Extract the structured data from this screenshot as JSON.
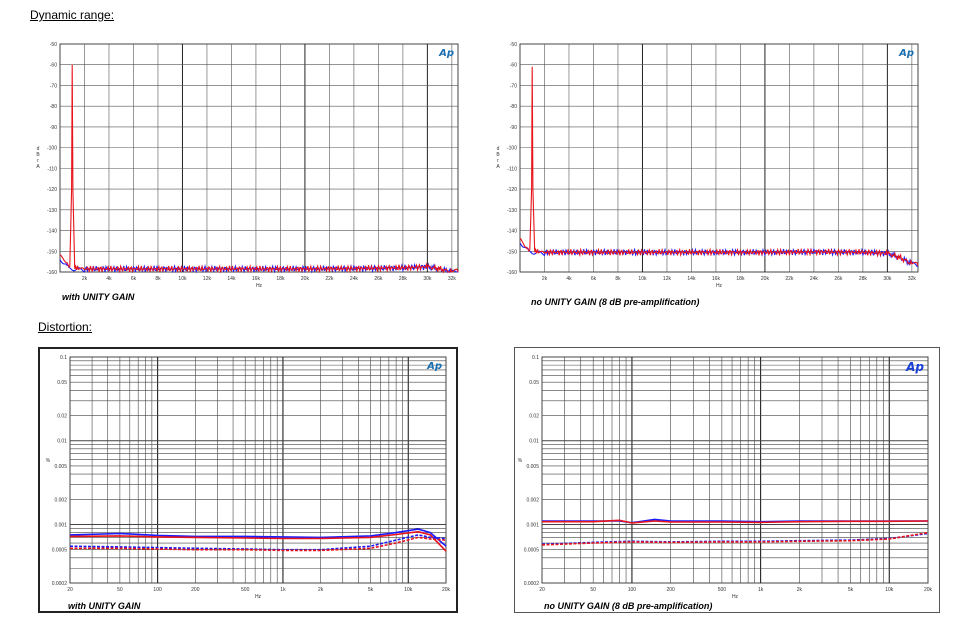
{
  "headings": {
    "dynamic_range": "Dynamic range:",
    "distortion": "Distortion:"
  },
  "chart_data": [
    {
      "id": "dyn_unity",
      "type": "line",
      "logo": "Ap",
      "caption": "with UNITY GAIN",
      "ylabel": "d B r A",
      "xlabel": "Hz",
      "xscale": "linear",
      "xlim": [
        0,
        32500
      ],
      "ylim": [
        -160,
        -50
      ],
      "yticks": [
        -50,
        -60,
        -70,
        -80,
        -90,
        -100,
        -110,
        -120,
        -130,
        -140,
        -150,
        -160
      ],
      "ytick_labels": [
        "-50",
        "-60",
        "-70",
        "-80",
        "-90",
        "-100",
        "-110",
        "-120",
        "-130",
        "-140",
        "-150",
        "-160"
      ],
      "xticks": [
        2000,
        4000,
        6000,
        8000,
        10000,
        12000,
        14000,
        16000,
        18000,
        20000,
        22000,
        24000,
        26000,
        28000,
        30000,
        32000
      ],
      "xtick_labels": [
        "2k",
        "4k",
        "6k",
        "8k",
        "10k",
        "12k",
        "14k",
        "16k",
        "18k",
        "20k",
        "22k",
        "24k",
        "26k",
        "28k",
        "30k",
        "32k"
      ],
      "grid": true,
      "series": [
        {
          "color": "#1a1aff",
          "x": [
            0,
            500,
            800,
            1000,
            1500,
            2000,
            4000,
            8000,
            12000,
            16000,
            20000,
            24000,
            28000,
            30000,
            31000,
            32000,
            32500
          ],
          "y": [
            -154,
            -156,
            -158,
            -158,
            -158,
            -158.5,
            -158.5,
            -158.5,
            -158.5,
            -158.5,
            -158.5,
            -158.3,
            -158,
            -157.5,
            -158.5,
            -160,
            -160
          ]
        },
        {
          "color": "#e8141c",
          "x": [
            0,
            500,
            800,
            950,
            1000,
            1050,
            1200,
            1500,
            2000,
            4000,
            8000,
            12000,
            16000,
            20000,
            24000,
            28000,
            30000,
            31000,
            32000,
            32500
          ],
          "y": [
            -153,
            -155,
            -158,
            -120,
            -60,
            -120,
            -158,
            -158,
            -158.5,
            -158.5,
            -158.5,
            -158.5,
            -158.5,
            -158.5,
            -158.3,
            -158,
            -157.5,
            -158.5,
            -160,
            -160
          ]
        }
      ]
    },
    {
      "id": "dyn_nounity",
      "type": "line",
      "logo": "Ap",
      "caption": "no UNITY GAIN (8 dB pre-amplification)",
      "ylabel": "d B r A",
      "xlabel": "Hz",
      "xscale": "linear",
      "xlim": [
        0,
        32500
      ],
      "ylim": [
        -160,
        -50
      ],
      "yticks": [
        -50,
        -60,
        -70,
        -80,
        -90,
        -100,
        -110,
        -120,
        -130,
        -140,
        -150,
        -160
      ],
      "ytick_labels": [
        "-50",
        "-60",
        "-70",
        "-80",
        "-90",
        "-100",
        "-110",
        "-120",
        "-130",
        "-140",
        "-150",
        "-160"
      ],
      "xticks": [
        2000,
        4000,
        6000,
        8000,
        10000,
        12000,
        14000,
        16000,
        18000,
        20000,
        22000,
        24000,
        26000,
        28000,
        30000,
        32000
      ],
      "xtick_labels": [
        "2k",
        "4k",
        "6k",
        "8k",
        "10k",
        "12k",
        "14k",
        "16k",
        "18k",
        "20k",
        "22k",
        "24k",
        "26k",
        "28k",
        "30k",
        "32k"
      ],
      "grid": true,
      "series": [
        {
          "color": "#1a1aff",
          "x": [
            0,
            500,
            800,
            1000,
            1500,
            2000,
            4000,
            8000,
            12000,
            16000,
            20000,
            24000,
            28000,
            30000,
            31000,
            32000,
            32500
          ],
          "y": [
            -146,
            -148,
            -150,
            -150,
            -150,
            -150.5,
            -150.5,
            -150.5,
            -150.5,
            -150.5,
            -150.5,
            -150.3,
            -150.5,
            -151,
            -153,
            -156,
            -157
          ]
        },
        {
          "color": "#e8141c",
          "x": [
            0,
            500,
            800,
            950,
            1000,
            1050,
            1200,
            1500,
            2000,
            4000,
            8000,
            12000,
            16000,
            20000,
            24000,
            28000,
            30000,
            31000,
            32000,
            32500
          ],
          "y": [
            -145,
            -148,
            -150,
            -120,
            -61,
            -120,
            -150,
            -150,
            -150.5,
            -150.5,
            -150.5,
            -150.5,
            -150.5,
            -150.5,
            -150.3,
            -150.5,
            -151,
            -153,
            -156,
            -157
          ]
        }
      ]
    },
    {
      "id": "dist_unity",
      "type": "line",
      "logo": "Ap",
      "caption": "with UNITY GAIN",
      "ylabel": "%",
      "xlabel": "Hz",
      "xscale": "log",
      "yscale": "log",
      "xlim": [
        20,
        20000
      ],
      "ylim": [
        0.0002,
        0.1
      ],
      "yticks": [
        0.1,
        0.05,
        0.02,
        0.01,
        0.005,
        0.002,
        0.001,
        0.0005,
        0.0002
      ],
      "ytick_labels": [
        "0.1",
        "0.05",
        "0.02",
        "0.01",
        "0.005",
        "0.002",
        "0.001",
        "0.0005",
        "0.0002"
      ],
      "xticks": [
        20,
        50,
        100,
        200,
        500,
        1000,
        2000,
        5000,
        10000,
        20000
      ],
      "xtick_labels": [
        "20",
        "50",
        "100",
        "200",
        "500",
        "1k",
        "2k",
        "5k",
        "10k",
        "20k"
      ],
      "grid": true,
      "series": [
        {
          "color": "#1a1aff",
          "style": "solid",
          "x": [
            20,
            50,
            100,
            200,
            500,
            1000,
            2000,
            5000,
            8000,
            12000,
            15000,
            20000
          ],
          "y": [
            0.00075,
            0.00078,
            0.00074,
            0.00072,
            0.00072,
            0.00071,
            0.0007,
            0.00073,
            0.0008,
            0.00088,
            0.0008,
            0.00055
          ]
        },
        {
          "color": "#e8141c",
          "style": "solid",
          "x": [
            20,
            50,
            100,
            200,
            500,
            1000,
            2000,
            5000,
            8000,
            12000,
            15000,
            20000
          ],
          "y": [
            0.00072,
            0.00073,
            0.00071,
            0.0007,
            0.00069,
            0.00068,
            0.00068,
            0.0007,
            0.00076,
            0.00082,
            0.00075,
            0.00048
          ]
        },
        {
          "color": "#1a1aff",
          "style": "dashed",
          "x": [
            20,
            50,
            100,
            200,
            500,
            1000,
            2000,
            5000,
            8000,
            12000,
            15000,
            20000
          ],
          "y": [
            0.00055,
            0.00054,
            0.00053,
            0.00052,
            0.00051,
            0.0005,
            0.0005,
            0.00055,
            0.00065,
            0.00075,
            0.0007,
            0.00068
          ]
        },
        {
          "color": "#e8141c",
          "style": "dashed",
          "x": [
            20,
            50,
            100,
            200,
            500,
            1000,
            2000,
            5000,
            8000,
            12000,
            15000,
            20000
          ],
          "y": [
            0.00052,
            0.00052,
            0.00051,
            0.0005,
            0.0005,
            0.00049,
            0.00049,
            0.00052,
            0.0006,
            0.0007,
            0.00067,
            0.00065
          ]
        }
      ]
    },
    {
      "id": "dist_nounity",
      "type": "line",
      "logo": "Ap",
      "caption": "no UNITY GAIN (8 dB pre-amplification)",
      "ylabel": "%",
      "xlabel": "Hz",
      "xscale": "log",
      "yscale": "log",
      "xlim": [
        20,
        20000
      ],
      "ylim": [
        0.0002,
        0.1
      ],
      "yticks": [
        0.1,
        0.05,
        0.02,
        0.01,
        0.005,
        0.002,
        0.001,
        0.0005,
        0.0002
      ],
      "ytick_labels": [
        "0.1",
        "0.05",
        "0.02",
        "0.01",
        "0.005",
        "0.002",
        "0.001",
        "0.0005",
        "0.0002"
      ],
      "xticks": [
        20,
        50,
        100,
        200,
        500,
        1000,
        2000,
        5000,
        10000,
        20000
      ],
      "xtick_labels": [
        "20",
        "50",
        "100",
        "200",
        "500",
        "1k",
        "2k",
        "5k",
        "10k",
        "20k"
      ],
      "grid": true,
      "series": [
        {
          "color": "#1a1aff",
          "style": "solid",
          "x": [
            20,
            50,
            80,
            100,
            150,
            200,
            500,
            1000,
            2000,
            5000,
            10000,
            20000
          ],
          "y": [
            0.0011,
            0.0011,
            0.0011,
            0.00105,
            0.00115,
            0.0011,
            0.0011,
            0.00108,
            0.0011,
            0.0011,
            0.0011,
            0.0011
          ]
        },
        {
          "color": "#e8141c",
          "style": "solid",
          "x": [
            20,
            50,
            80,
            100,
            150,
            200,
            500,
            1000,
            2000,
            5000,
            10000,
            20000
          ],
          "y": [
            0.00108,
            0.00108,
            0.00112,
            0.00104,
            0.0011,
            0.00107,
            0.00107,
            0.00106,
            0.00108,
            0.00109,
            0.00109,
            0.0011
          ]
        },
        {
          "color": "#1a1aff",
          "style": "dashed",
          "x": [
            20,
            50,
            100,
            200,
            500,
            1000,
            2000,
            5000,
            10000,
            20000
          ],
          "y": [
            0.00058,
            0.00061,
            0.00063,
            0.00062,
            0.00063,
            0.00063,
            0.00064,
            0.00065,
            0.00068,
            0.00078
          ]
        },
        {
          "color": "#e8141c",
          "style": "dashed",
          "x": [
            20,
            50,
            100,
            200,
            500,
            1000,
            2000,
            5000,
            10000,
            20000
          ],
          "y": [
            0.00057,
            0.0006,
            0.00062,
            0.00061,
            0.00062,
            0.00062,
            0.00063,
            0.00064,
            0.00067,
            0.0008
          ]
        }
      ]
    }
  ]
}
